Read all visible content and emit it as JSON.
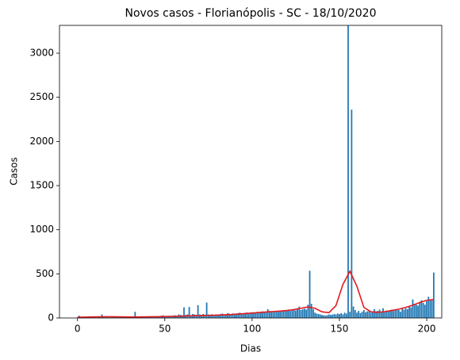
{
  "chart_data": {
    "type": "bar",
    "title": "Novos casos - Florianópolis - SC - 18/10/2020",
    "xlabel": "Dias",
    "ylabel": "Casos",
    "xlim": [
      -10.3,
      208.6
    ],
    "xticks": [
      0,
      50,
      100,
      150,
      200
    ],
    "ylim": [
      0,
      3315
    ],
    "yticks": [
      0,
      500,
      1000,
      1500,
      2000,
      2500,
      3000
    ],
    "series": [
      {
        "type": "bar",
        "color": "#1f77b4",
        "x": [
          0,
          1,
          2,
          3,
          4,
          5,
          6,
          7,
          8,
          9,
          10,
          11,
          12,
          13,
          14,
          15,
          16,
          17,
          18,
          19,
          20,
          21,
          22,
          23,
          24,
          25,
          26,
          27,
          28,
          29,
          30,
          31,
          32,
          33,
          34,
          35,
          36,
          37,
          38,
          39,
          40,
          41,
          42,
          43,
          44,
          45,
          46,
          47,
          48,
          49,
          50,
          51,
          52,
          53,
          54,
          55,
          56,
          57,
          58,
          59,
          60,
          61,
          62,
          63,
          64,
          65,
          66,
          67,
          68,
          69,
          70,
          71,
          72,
          73,
          74,
          75,
          76,
          77,
          78,
          79,
          80,
          81,
          82,
          83,
          84,
          85,
          86,
          87,
          88,
          89,
          90,
          91,
          92,
          93,
          94,
          95,
          96,
          97,
          98,
          99,
          100,
          101,
          102,
          103,
          104,
          105,
          106,
          107,
          108,
          109,
          110,
          111,
          112,
          113,
          114,
          115,
          116,
          117,
          118,
          119,
          120,
          121,
          122,
          123,
          124,
          125,
          126,
          127,
          128,
          129,
          130,
          131,
          132,
          133,
          134,
          135,
          136,
          137,
          138,
          139,
          140,
          141,
          142,
          143,
          144,
          145,
          146,
          147,
          148,
          149,
          150,
          151,
          152,
          153,
          154,
          155,
          156,
          157,
          158,
          159,
          160,
          161,
          162,
          163,
          164,
          165,
          166,
          167,
          168,
          169,
          170,
          171,
          172,
          173,
          174,
          175,
          176,
          177,
          178,
          179,
          180,
          181,
          182,
          183,
          184,
          185,
          186,
          187,
          188,
          189,
          190,
          191,
          192,
          193,
          194,
          195,
          196,
          197,
          198,
          199,
          200,
          201,
          202,
          203,
          204
        ],
        "values": [
          2,
          25,
          3,
          5,
          4,
          6,
          3,
          8,
          5,
          4,
          6,
          5,
          8,
          10,
          40,
          12,
          8,
          10,
          6,
          9,
          10,
          12,
          8,
          15,
          10,
          12,
          9,
          14,
          10,
          8,
          12,
          10,
          15,
          70,
          12,
          18,
          15,
          20,
          14,
          12,
          15,
          18,
          20,
          16,
          22,
          18,
          15,
          20,
          25,
          30,
          20,
          18,
          22,
          25,
          20,
          28,
          30,
          25,
          40,
          35,
          30,
          120,
          35,
          40,
          125,
          30,
          45,
          40,
          35,
          145,
          40,
          35,
          45,
          38,
          175,
          40,
          35,
          42,
          30,
          38,
          40,
          35,
          45,
          50,
          38,
          42,
          55,
          48,
          40,
          52,
          45,
          50,
          55,
          60,
          48,
          52,
          58,
          62,
          55,
          60,
          65,
          60,
          58,
          70,
          62,
          68,
          75,
          65,
          70,
          100,
          80,
          72,
          68,
          75,
          80,
          70,
          85,
          78,
          82,
          90,
          88,
          95,
          80,
          92,
          100,
          85,
          110,
          130,
          90,
          100,
          105,
          95,
          150,
          535,
          160,
          100,
          60,
          50,
          45,
          40,
          35,
          30,
          28,
          32,
          40,
          35,
          38,
          45,
          40,
          50,
          45,
          55,
          40,
          60,
          50,
          3315,
          70,
          2360,
          130,
          90,
          60,
          80,
          55,
          70,
          90,
          65,
          75,
          85,
          60,
          70,
          100,
          75,
          80,
          95,
          65,
          110,
          70,
          85,
          75,
          90,
          95,
          80,
          85,
          100,
          90,
          70,
          105,
          95,
          110,
          100,
          130,
          120,
          210,
          160,
          150,
          140,
          180,
          200,
          170,
          150,
          190,
          240,
          210,
          200,
          515
        ]
      },
      {
        "type": "line",
        "color": "#e41a1c",
        "x": [
          0,
          4,
          8,
          12,
          16,
          20,
          24,
          28,
          32,
          36,
          40,
          44,
          48,
          52,
          56,
          60,
          64,
          68,
          72,
          76,
          80,
          84,
          88,
          92,
          96,
          100,
          104,
          108,
          112,
          116,
          120,
          124,
          128,
          132,
          136,
          140,
          144,
          148,
          152,
          156,
          160,
          164,
          168,
          172,
          176,
          180,
          184,
          188,
          192,
          196,
          200,
          204
        ],
        "values": [
          8,
          10,
          12,
          13,
          14,
          14,
          13,
          12,
          12,
          12,
          13,
          14,
          15,
          17,
          19,
          21,
          24,
          26,
          28,
          30,
          32,
          35,
          39,
          44,
          50,
          56,
          62,
          68,
          73,
          78,
          85,
          95,
          110,
          125,
          110,
          70,
          60,
          140,
          380,
          530,
          360,
          120,
          70,
          65,
          72,
          85,
          100,
          120,
          145,
          175,
          200,
          210
        ]
      }
    ]
  }
}
